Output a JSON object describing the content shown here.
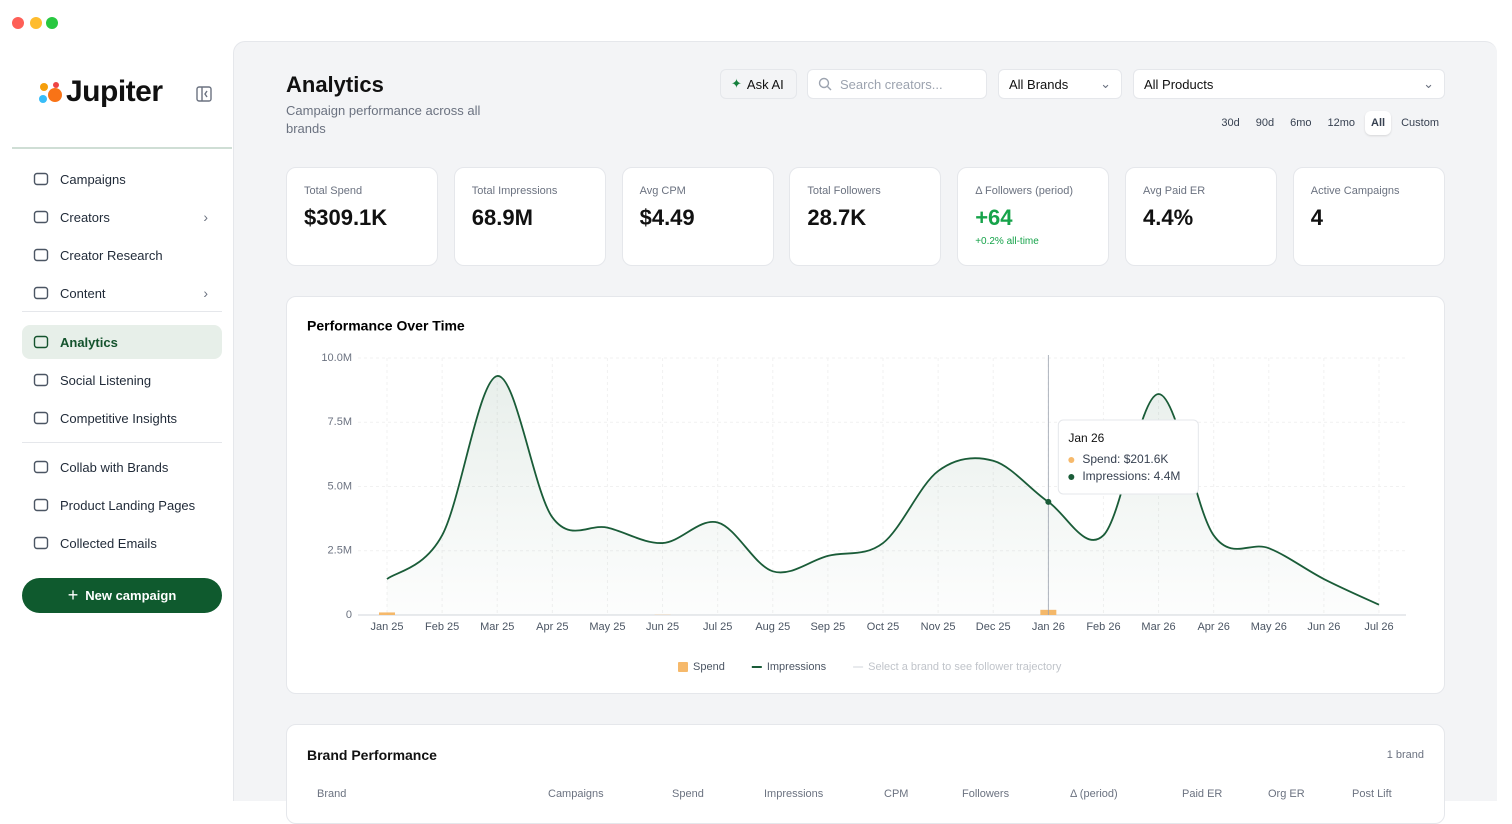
{
  "sidebar": {
    "brand": "Jupiter",
    "nav": [
      {
        "label": "Campaigns"
      },
      {
        "label": "Creators",
        "has_children": true
      },
      {
        "label": "Creator Research"
      },
      {
        "label": "Content",
        "has_children": true
      },
      {
        "label": "Analytics",
        "active": true
      },
      {
        "label": "Social Listening"
      },
      {
        "label": "Competitive Insights"
      },
      {
        "label": "Collab with Brands"
      },
      {
        "label": "Product Landing Pages"
      },
      {
        "label": "Collected Emails"
      }
    ],
    "new_campaign": "New campaign"
  },
  "header": {
    "title": "Analytics",
    "subtitle": "Campaign performance across all brands",
    "ask_ai": "Ask AI",
    "search_placeholder": "Search creators...",
    "brand_filter": "All Brands",
    "product_filter": "All Products",
    "ranges": [
      "30d",
      "90d",
      "6mo",
      "12mo",
      "All",
      "Custom"
    ],
    "active_range": "All"
  },
  "stats": [
    {
      "label": "Total Spend",
      "value": "$309.1K"
    },
    {
      "label": "Total Impressions",
      "value": "68.9M"
    },
    {
      "label": "Avg CPM",
      "value": "$4.49"
    },
    {
      "label": "Total Followers",
      "value": "28.7K"
    },
    {
      "label": "Δ Followers (period)",
      "value": "+64",
      "note": "+0.2% all-time",
      "positive": true
    },
    {
      "label": "Avg Paid ER",
      "value": "4.4%"
    },
    {
      "label": "Active Campaigns",
      "value": "4"
    }
  ],
  "performance_chart": {
    "type": "line",
    "title": "Performance Over Time",
    "categories": [
      "Jan 25",
      "Feb 25",
      "Mar 25",
      "Apr 25",
      "May 25",
      "Jun 25",
      "Jul 25",
      "Aug 25",
      "Sep 25",
      "Oct 25",
      "Nov 25",
      "Dec 25",
      "Jan 26",
      "Feb 26",
      "Mar 26",
      "Apr 26",
      "May 26",
      "Jun 26",
      "Jul 26"
    ],
    "series": [
      {
        "name": "Spend",
        "type": "bar",
        "color": "#f6b96b",
        "values": [
          100000,
          0,
          0,
          0,
          0,
          7500,
          0,
          0,
          0,
          0,
          0,
          0,
          201600,
          0,
          0,
          0,
          0,
          0,
          0
        ]
      },
      {
        "name": "Impressions",
        "type": "line",
        "color": "#1a5c38",
        "values": [
          1400000,
          3100000,
          9300000,
          3800000,
          3400000,
          2800000,
          3600000,
          1700000,
          2300000,
          2800000,
          5600000,
          6000000,
          4400000,
          3100000,
          8600000,
          3100000,
          2600000,
          1400000,
          400000
        ]
      }
    ],
    "ylim": [
      0,
      10000000
    ],
    "yticks": [
      0,
      {
        "value": 2500000,
        "label": "2.5M"
      },
      {
        "value": 5000000,
        "label": "5.0M"
      },
      {
        "value": 7500000,
        "label": "7.5M"
      },
      {
        "value": 10000000,
        "label": "10.0M"
      }
    ],
    "grid": true,
    "legend_note": "Select a brand to see follower trajectory",
    "tooltip": {
      "title": "Jan 26",
      "lines": [
        "Spend: $201.6K",
        "Impressions: 4.4M"
      ]
    }
  },
  "brand_performance": {
    "title": "Brand Performance",
    "count": "1 brand",
    "columns": [
      "Brand",
      "Campaigns",
      "Spend",
      "Impressions",
      "CPM",
      "Followers",
      "Δ (period)",
      "Paid ER",
      "Org ER",
      "Post Lift"
    ]
  }
}
